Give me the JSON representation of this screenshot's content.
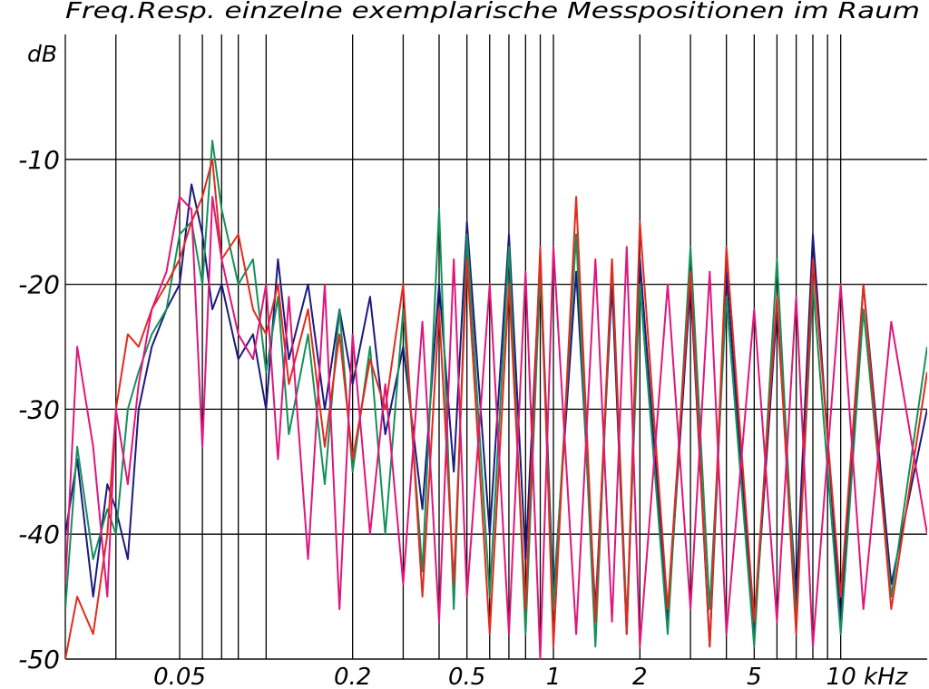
{
  "chart_data": {
    "type": "line",
    "title": "Freq.Resp. einzelne exemplarische Messpositionen im Raum",
    "y_label": "dB",
    "log_x": true,
    "grid": true,
    "xlim": [
      0.02,
      20
    ],
    "ylim": [
      -50,
      0
    ],
    "yticks": [
      -10,
      -20,
      -30,
      -40,
      -50
    ],
    "xticks": [
      0.05,
      0.2,
      0.5,
      1,
      2,
      5,
      {
        "value": 10,
        "label": "10 kHz"
      }
    ],
    "x_minor_grid": [
      0.03,
      0.06,
      0.07,
      0.08,
      0.1,
      0.3,
      0.4,
      0.6,
      0.7,
      0.8,
      0.9,
      3,
      4,
      6,
      7,
      8,
      9
    ],
    "x": [
      0.02,
      0.022,
      0.025,
      0.028,
      0.03,
      0.033,
      0.036,
      0.04,
      0.045,
      0.05,
      0.055,
      0.06,
      0.065,
      0.07,
      0.08,
      0.09,
      0.1,
      0.11,
      0.12,
      0.14,
      0.16,
      0.18,
      0.2,
      0.23,
      0.26,
      0.3,
      0.35,
      0.4,
      0.45,
      0.5,
      0.6,
      0.7,
      0.8,
      0.9,
      1,
      1.2,
      1.4,
      1.6,
      1.8,
      2,
      2.5,
      3,
      3.5,
      4,
      5,
      6,
      7,
      8,
      10,
      12,
      15,
      20
    ],
    "series": [
      {
        "color": "#1c1a7e",
        "values": [
          -40,
          -34,
          -45,
          -36,
          -38,
          -42,
          -30,
          -25,
          -22,
          -20,
          -12,
          -16,
          -22,
          -20,
          -26,
          -24,
          -30,
          -18,
          -26,
          -20,
          -30,
          -22,
          -28,
          -21,
          -32,
          -25,
          -38,
          -20,
          -35,
          -15,
          -40,
          -16,
          -42,
          -18,
          -45,
          -19,
          -46,
          -20,
          -48,
          -18,
          -47,
          -20,
          -49,
          -19,
          -48,
          -22,
          -45,
          -16,
          -47,
          -20,
          -44,
          -30
        ]
      },
      {
        "color": "#15905a",
        "values": [
          -46,
          -33,
          -42,
          -38,
          -40,
          -30,
          -27,
          -24,
          -22,
          -16,
          -15,
          -20,
          -8.5,
          -14,
          -20,
          -18,
          -27,
          -21,
          -32,
          -24,
          -36,
          -22,
          -35,
          -25,
          -40,
          -22,
          -43,
          -14,
          -46,
          -16,
          -45,
          -17,
          -48,
          -19,
          -46,
          -16,
          -49,
          -18,
          -47,
          -20,
          -48,
          -17,
          -46,
          -21,
          -49,
          -18,
          -47,
          -20,
          -48,
          -22,
          -45,
          -25
        ]
      },
      {
        "color": "#e42a1e",
        "values": [
          -50,
          -45,
          -48,
          -40,
          -30,
          -24,
          -25,
          -22,
          -20,
          -18,
          -15,
          -13,
          -10,
          -18,
          -16,
          -22,
          -24,
          -20,
          -28,
          -22,
          -33,
          -24,
          -34,
          -26,
          -30,
          -20,
          -45,
          -22,
          -44,
          -18,
          -48,
          -20,
          -46,
          -17,
          -49,
          -13,
          -47,
          -18,
          -48,
          -15,
          -46,
          -19,
          -49,
          -17,
          -47,
          -21,
          -48,
          -18,
          -45,
          -20,
          -46,
          -27
        ]
      },
      {
        "color": "#e0167c",
        "values": [
          -44,
          -25,
          -33,
          -45,
          -30,
          -36,
          -28,
          -22,
          -19,
          -13,
          -14,
          -33,
          -13,
          -18,
          -24,
          -26,
          -20,
          -34,
          -21,
          -42,
          -20,
          -46,
          -24,
          -40,
          -28,
          -44,
          -23,
          -47,
          -18,
          -45,
          -20,
          -48,
          -19,
          -50,
          -17,
          -48,
          -18,
          -47,
          -17,
          -49,
          -20,
          -46,
          -19,
          -48,
          -22,
          -47,
          -21,
          -49,
          -20,
          -46,
          -23,
          -40
        ]
      }
    ]
  }
}
